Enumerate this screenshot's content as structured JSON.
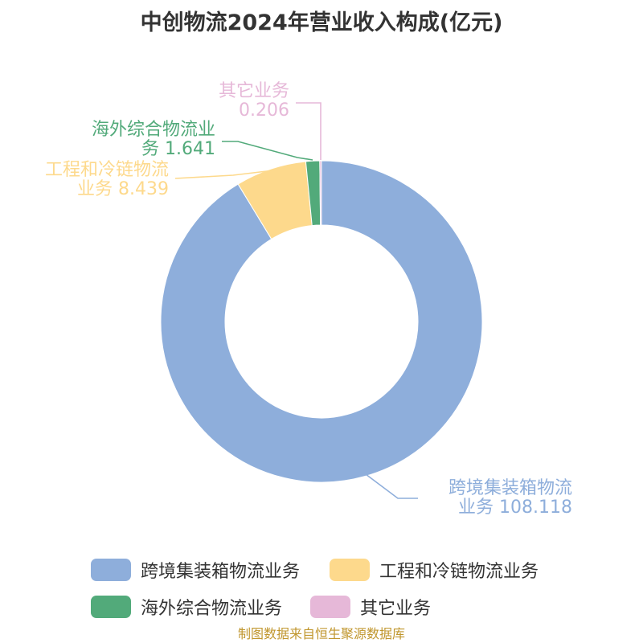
{
  "title": "中创物流2024年营业收入构成(亿元)",
  "source": "制图数据来自恒生聚源数据库",
  "chart_data": {
    "type": "pie",
    "variant": "donut",
    "title": "中创物流2024年营业收入构成(亿元)",
    "unit": "亿元",
    "legend_position": "bottom",
    "slices": [
      {
        "name": "跨境集装箱物流业务",
        "label_line1": "跨境集装箱物流",
        "label_line2": "业务 108.118",
        "value": 108.118,
        "color": "#8eaedb"
      },
      {
        "name": "工程和冷链物流业务",
        "label_line1": "工程和冷链物流",
        "label_line2": "业务 8.439",
        "value": 8.439,
        "color": "#fdd98c"
      },
      {
        "name": "海外综合物流业务",
        "label_line1": "海外综合物流业",
        "label_line2": "务 1.641",
        "value": 1.641,
        "color": "#52aa7a"
      },
      {
        "name": "其它业务",
        "label_line1": "其它业务",
        "label_line2": "0.206",
        "value": 0.206,
        "color": "#e6b8d8"
      }
    ]
  }
}
